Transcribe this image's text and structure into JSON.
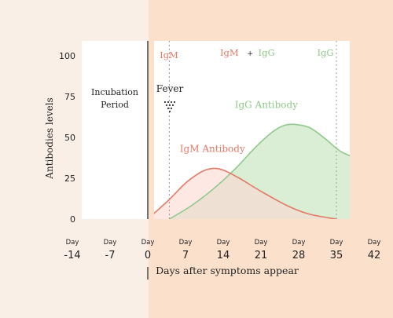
{
  "colors": {
    "left_bg": "#f9efe7",
    "right_bg": "#fbe1cc",
    "plot_bg": "#ffffff",
    "igm": "#e27a66",
    "igm_fill": "#fbd9d2",
    "igg": "#8fc98a",
    "igg_fill": "#d8ecd3",
    "overlap_fill": "#d8cdb6",
    "axis_text": "#222222",
    "gridline": "#9a9a9a"
  },
  "chart_data": {
    "type": "area",
    "ylabel": "Antibodies levels",
    "xlabel": "Days after symptoms appear",
    "y_ticks": [
      "0",
      "25",
      "50",
      "75",
      "100"
    ],
    "ylim": [
      0,
      100
    ],
    "x_ticks": [
      {
        "prefix": "Day",
        "value": "-14"
      },
      {
        "prefix": "Day",
        "value": "-7"
      },
      {
        "prefix": "Day",
        "value": "0"
      },
      {
        "prefix": "Day",
        "value": "7"
      },
      {
        "prefix": "Day",
        "value": "14"
      },
      {
        "prefix": "Day",
        "value": "21"
      },
      {
        "prefix": "Day",
        "value": "28"
      },
      {
        "prefix": "Day",
        "value": "35"
      },
      {
        "prefix": "Day",
        "value": "42"
      }
    ],
    "xlim": [
      -14,
      42
    ],
    "incubation_period": {
      "label_line1": "Incubation",
      "label_line2": "Period",
      "x_range": [
        -14,
        0
      ]
    },
    "fever": {
      "label": "Fever",
      "x": 2.5
    },
    "phase_dividers": [
      4,
      35
    ],
    "phases": [
      {
        "label": "IgM",
        "x": 2.5,
        "series": "igm"
      },
      {
        "label_igm": "IgM",
        "label_plus": "+",
        "label_igg": "IgG",
        "x": 19
      },
      {
        "label": "IgG",
        "x": 38.5,
        "series": "igg"
      }
    ],
    "series": [
      {
        "name": "IgM Antibody",
        "key": "igm",
        "label_x": 12,
        "label_y": 41,
        "x": [
          0,
          4,
          7,
          10,
          12,
          14,
          17,
          21,
          26,
          30,
          35
        ],
        "y": [
          0,
          12,
          22,
          29,
          31,
          30,
          25,
          17,
          8,
          3,
          0
        ]
      },
      {
        "name": "IgG Antibody",
        "key": "igg",
        "label_x": 22,
        "label_y": 68,
        "x": [
          4,
          8,
          12,
          16,
          20,
          23,
          25,
          27,
          30,
          33,
          36,
          40,
          44
        ],
        "y": [
          0,
          8,
          18,
          30,
          44,
          53,
          57,
          58,
          56,
          49,
          41,
          36,
          32
        ]
      }
    ]
  }
}
